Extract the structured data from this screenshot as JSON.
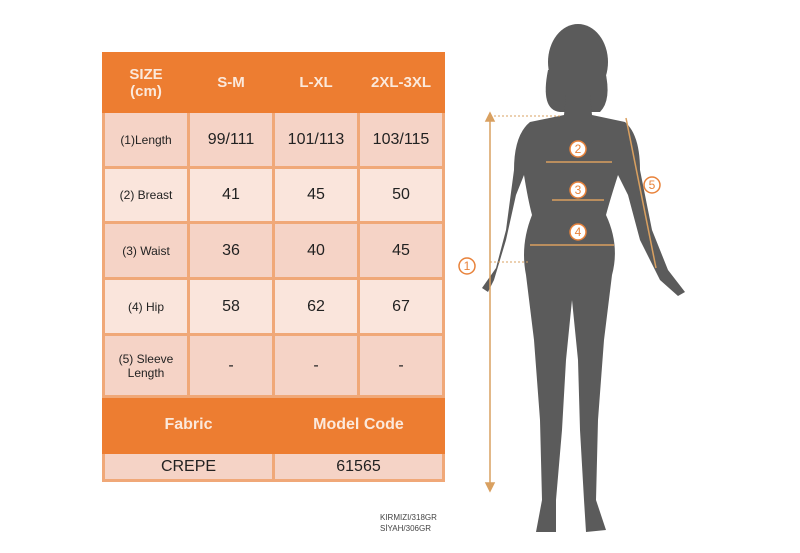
{
  "table": {
    "header": [
      "SIZE\n(cm)",
      "S-M",
      "L-XL",
      "2XL-3XL"
    ],
    "header_size_line1": "SIZE",
    "header_size_line2": "(cm)",
    "rows": [
      {
        "label": "(1)Length",
        "values": [
          "99/111",
          "101/113",
          "103/115"
        ]
      },
      {
        "label": "(2) Breast",
        "values": [
          "41",
          "45",
          "50"
        ]
      },
      {
        "label": "(3) Waist",
        "values": [
          "36",
          "40",
          "45"
        ]
      },
      {
        "label": "(4) Hip",
        "values": [
          "58",
          "62",
          "67"
        ]
      },
      {
        "label_line1": "(5) Sleeve",
        "label_line2": "Length",
        "values": [
          "-",
          "-",
          "-"
        ]
      }
    ],
    "fabric_label": "Fabric",
    "model_code_label": "Model Code",
    "fabric_value": "CREPE",
    "model_code_value": "61565"
  },
  "notes": [
    "KIRMIZI/318GR",
    "SİYAH/306GR"
  ],
  "figure": {
    "markers": [
      "1",
      "2",
      "3",
      "4",
      "5"
    ]
  },
  "colors": {
    "header": "#ed7d31",
    "row_dark": "#f5d3c6",
    "row_light": "#fae5dc",
    "silhouette": "#5b5b5b",
    "marker": "#e8823a"
  }
}
